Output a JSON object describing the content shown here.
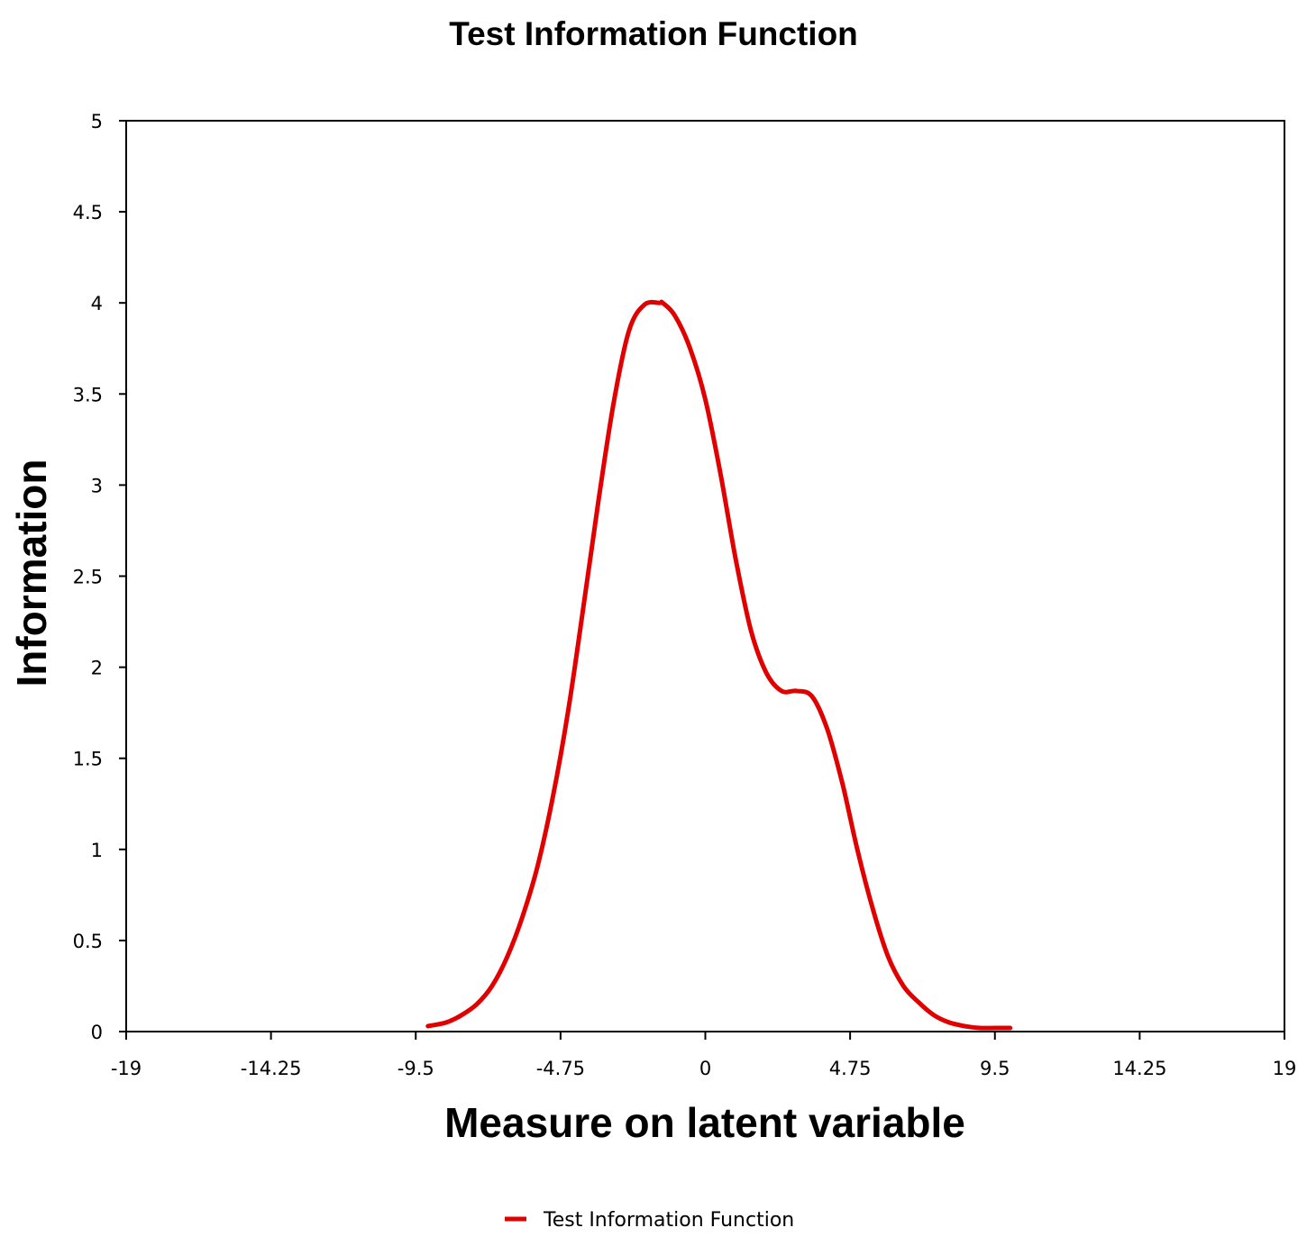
{
  "chart_data": {
    "type": "line",
    "title": "Test Information Function",
    "xlabel": "Measure on latent variable",
    "ylabel": "Information",
    "xlim": [
      -19,
      19
    ],
    "ylim": [
      0,
      5
    ],
    "x_ticks": [
      "-19",
      "-14.25",
      "-9.5",
      "-4.75",
      "0",
      "4.75",
      "9.5",
      "14.25",
      "19"
    ],
    "y_ticks": [
      "0",
      "0.5",
      "1",
      "1.5",
      "2",
      "2.5",
      "3",
      "3.5",
      "4",
      "4.5",
      "5"
    ],
    "grid": false,
    "legend_position": "bottom-center",
    "colors": {
      "series": "#e00000",
      "axis": "#000000"
    },
    "series": [
      {
        "name": "Test Information Function",
        "x": [
          -9.1,
          -8.5,
          -8.0,
          -7.5,
          -7.0,
          -6.5,
          -6.0,
          -5.5,
          -5.0,
          -4.5,
          -4.0,
          -3.5,
          -3.0,
          -2.5,
          -2.0,
          -1.5,
          -1.4,
          -1.0,
          -0.5,
          0.0,
          0.5,
          1.0,
          1.5,
          2.0,
          2.5,
          3.0,
          3.5,
          4.0,
          4.5,
          5.0,
          5.5,
          6.0,
          6.5,
          7.0,
          7.5,
          8.0,
          8.5,
          9.0,
          9.5,
          10.0
        ],
        "y": [
          0.03,
          0.05,
          0.09,
          0.15,
          0.25,
          0.41,
          0.63,
          0.91,
          1.29,
          1.76,
          2.33,
          2.92,
          3.46,
          3.85,
          3.99,
          4.0,
          4.0,
          3.93,
          3.75,
          3.47,
          3.06,
          2.59,
          2.2,
          1.97,
          1.87,
          1.87,
          1.84,
          1.66,
          1.36,
          0.99,
          0.67,
          0.41,
          0.25,
          0.16,
          0.09,
          0.05,
          0.03,
          0.02,
          0.02,
          0.02
        ]
      }
    ]
  }
}
